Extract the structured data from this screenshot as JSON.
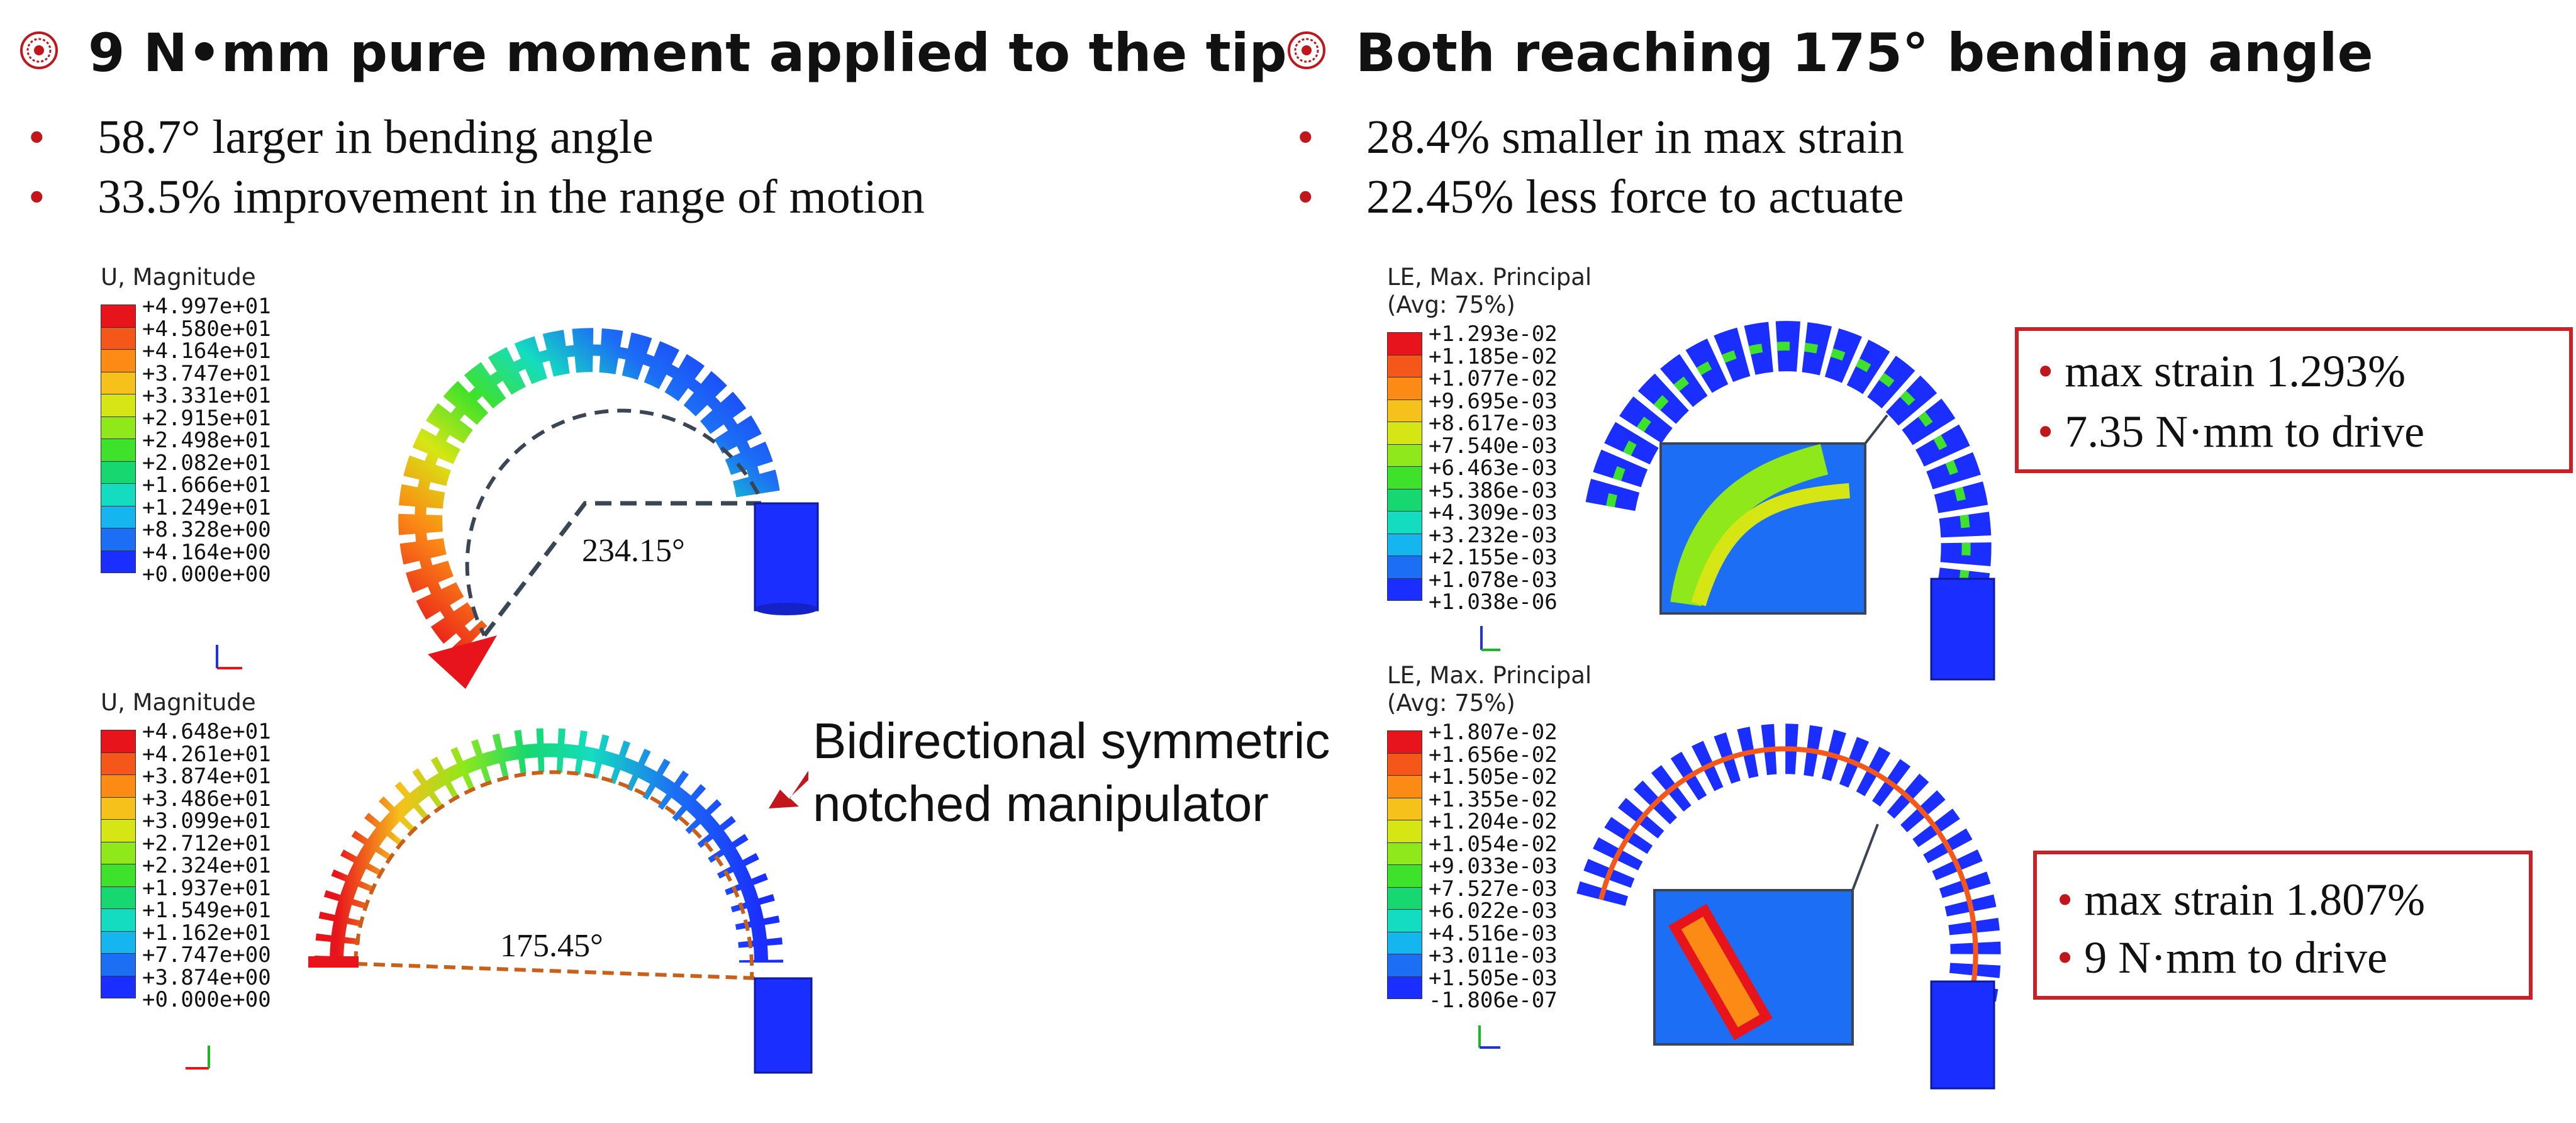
{
  "left": {
    "heading": "9 N•mm pure moment applied to the tip",
    "bullets": [
      "58.7° larger in bending angle",
      "33.5% improvement in the range of motion"
    ]
  },
  "right": {
    "heading": "Both reaching 175° bending angle",
    "bullets": [
      "28.4% smaller in max strain",
      "22.45% less force to actuate"
    ]
  },
  "legend_colors": [
    "#e8141c",
    "#f5561a",
    "#fb8b14",
    "#f6c11a",
    "#d6e614",
    "#8ee81a",
    "#3ee22a",
    "#17d870",
    "#14dcc0",
    "#15b6f0",
    "#1c6ef5",
    "#1a2eff"
  ],
  "legends": [
    {
      "title": [
        "U, Magnitude"
      ],
      "values": [
        "+4.997e+01",
        "+4.580e+01",
        "+4.164e+01",
        "+3.747e+01",
        "+3.331e+01",
        "+2.915e+01",
        "+2.498e+01",
        "+2.082e+01",
        "+1.666e+01",
        "+1.249e+01",
        "+8.328e+00",
        "+4.164e+00",
        "+0.000e+00"
      ]
    },
    {
      "title": [
        "U, Magnitude"
      ],
      "values": [
        "+4.648e+01",
        "+4.261e+01",
        "+3.874e+01",
        "+3.486e+01",
        "+3.099e+01",
        "+2.712e+01",
        "+2.324e+01",
        "+1.937e+01",
        "+1.549e+01",
        "+1.162e+01",
        "+7.747e+00",
        "+3.874e+00",
        "+0.000e+00"
      ]
    },
    {
      "title": [
        "LE, Max. Principal",
        "(Avg: 75%)"
      ],
      "values": [
        "+1.293e-02",
        "+1.185e-02",
        "+1.077e-02",
        "+9.695e-03",
        "+8.617e-03",
        "+7.540e-03",
        "+6.463e-03",
        "+5.386e-03",
        "+4.309e-03",
        "+3.232e-03",
        "+2.155e-03",
        "+1.078e-03",
        "+1.038e-06"
      ]
    },
    {
      "title": [
        "LE, Max. Principal",
        "(Avg: 75%)"
      ],
      "values": [
        "+1.807e-02",
        "+1.656e-02",
        "+1.505e-02",
        "+1.355e-02",
        "+1.204e-02",
        "+1.054e-02",
        "+9.033e-03",
        "+7.527e-03",
        "+6.022e-03",
        "+4.516e-03",
        "+3.011e-03",
        "+1.505e-03",
        "-1.806e-07"
      ]
    }
  ],
  "angles": {
    "top_left": "234.15°",
    "bottom_left": "175.45°"
  },
  "annotation": [
    "Bidirectional symmetric",
    "notched manipulator"
  ],
  "box_top": [
    "max strain 1.293%",
    "7.35 N·mm to drive"
  ],
  "box_bottom": [
    "max strain 1.807%",
    "9 N·mm to drive"
  ]
}
